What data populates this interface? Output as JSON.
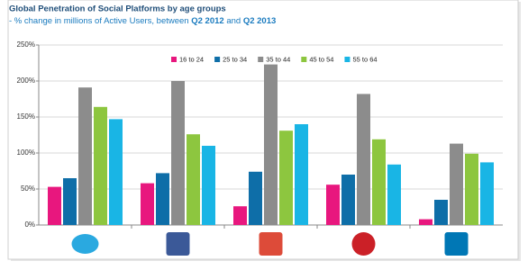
{
  "chart_data": {
    "type": "bar",
    "title": "Global Penetration of Social Platforms by age groups",
    "subtitle": [
      "- % change in millions of Active Users, between ",
      "Q2 2012",
      " and ",
      "Q2 2013"
    ],
    "categories": [
      null,
      null,
      null,
      null,
      null
    ],
    "series": [
      {
        "name": "16 to 24",
        "color": "#e8177e",
        "values": [
          53,
          58,
          26,
          56,
          8
        ]
      },
      {
        "name": "25 to 34",
        "color": "#0e6ea8",
        "values": [
          65,
          72,
          74,
          70,
          35
        ]
      },
      {
        "name": "35 to 44",
        "color": "#8c8c8c",
        "values": [
          191,
          200,
          223,
          182,
          113
        ]
      },
      {
        "name": "45 to 54",
        "color": "#8dc63f",
        "values": [
          164,
          126,
          131,
          119,
          99
        ]
      },
      {
        "name": "55 to 64",
        "color": "#19b5e5",
        "values": [
          147,
          110,
          140,
          84,
          87
        ]
      }
    ],
    "ylim": [
      0,
      250
    ],
    "yticks": [
      {
        "value": 0,
        "label": "0%"
      },
      {
        "value": 50,
        "label": "50%"
      },
      {
        "value": 100,
        "label": "100%"
      },
      {
        "value": 150,
        "label": "150%"
      },
      {
        "value": 200,
        "label": "200%"
      },
      {
        "value": 250,
        "label": "250%"
      }
    ],
    "grid": true,
    "legend": "top"
  }
}
